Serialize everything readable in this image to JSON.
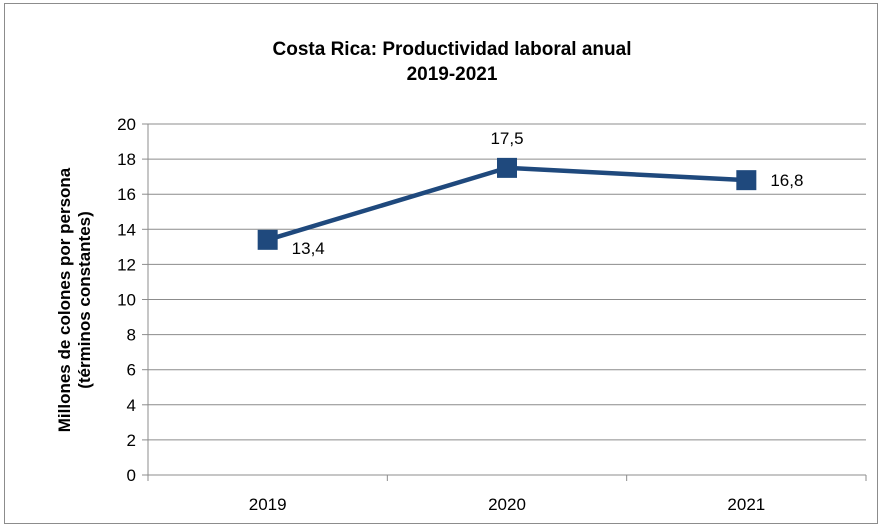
{
  "chart_data": {
    "type": "line",
    "title_lines": [
      "Costa Rica: Productividad laboral anual",
      "2019-2021"
    ],
    "ylabel_lines": [
      "Millones de colones por persona",
      "(términos constantes)"
    ],
    "xlabel": "",
    "categories": [
      "2019",
      "2020",
      "2021"
    ],
    "series": [
      {
        "values": [
          13.4,
          17.5,
          16.8
        ],
        "data_labels": [
          "13,4",
          "17,5",
          "16,8"
        ],
        "color": "#1f497d"
      }
    ],
    "ylim": [
      0,
      20
    ],
    "y_ticks": [
      "0",
      "2",
      "4",
      "6",
      "8",
      "10",
      "12",
      "14",
      "16",
      "18",
      "20"
    ],
    "grid": true,
    "legend": "none"
  }
}
